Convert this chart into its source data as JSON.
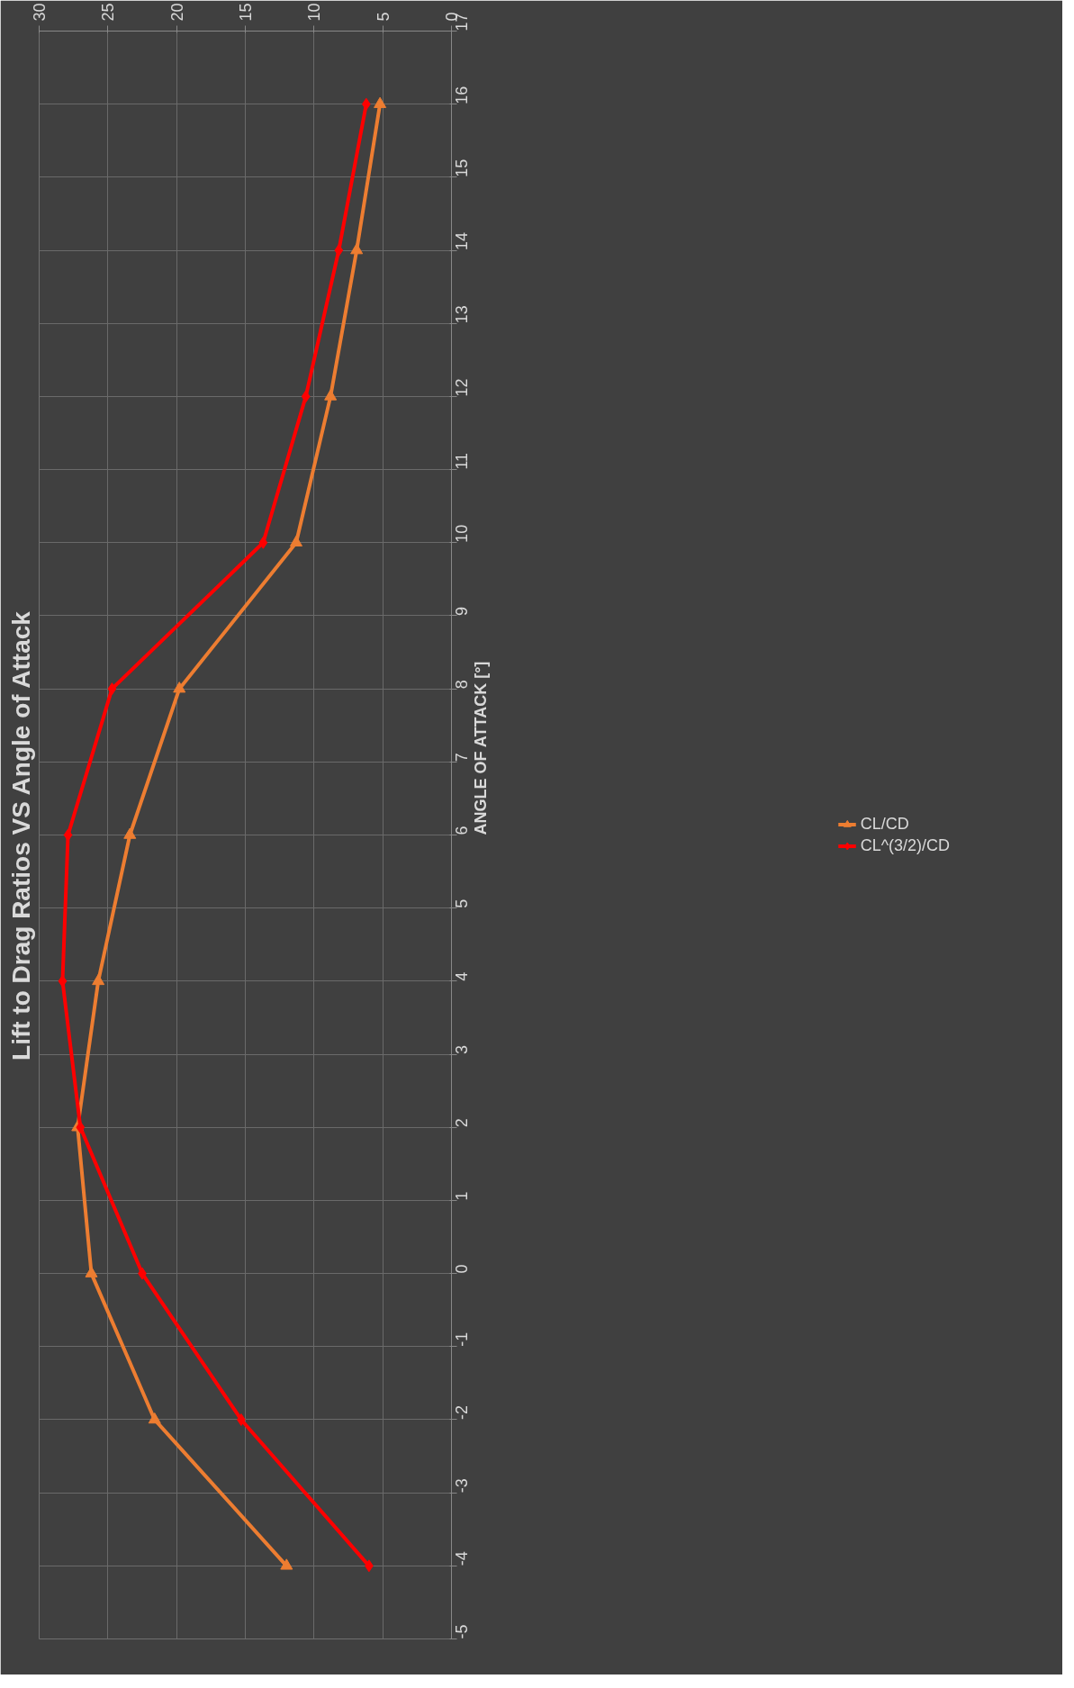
{
  "chart_data": {
    "type": "line",
    "title": "Lift to Drag Ratios VS Angle of Attack",
    "ylabel": "ANGLE OF ATTACK [°]",
    "series": [
      {
        "name": "CL/CD",
        "color": "#ed7d31",
        "marker": "triangle",
        "x": [
          12.0,
          21.6,
          26.2,
          27.2,
          25.7,
          23.4,
          19.8,
          11.3,
          8.8,
          6.9,
          5.2
        ],
        "values": [
          -4,
          -2,
          0,
          2,
          4,
          6,
          8,
          10,
          12,
          14,
          16
        ]
      },
      {
        "name": "CL^(3/2)/CD",
        "color": "#ff0000",
        "marker": "diamond",
        "x": [
          6.0,
          15.3,
          22.5,
          27.0,
          28.3,
          27.9,
          24.7,
          13.7,
          10.6,
          8.2,
          6.2
        ],
        "values": [
          -4,
          -2,
          0,
          2,
          4,
          6,
          8,
          10,
          12,
          14,
          16
        ]
      }
    ],
    "xlim": [
      30,
      0
    ],
    "xticks": [
      0,
      5,
      10,
      15,
      20,
      25,
      30
    ],
    "ylim": [
      -5,
      17
    ],
    "yticks": [
      -5,
      -4,
      -3,
      -2,
      -1,
      0,
      1,
      2,
      3,
      4,
      5,
      6,
      7,
      8,
      9,
      10,
      11,
      12,
      13,
      14,
      15,
      16,
      17
    ],
    "grid": true,
    "legend": "right",
    "line_style": "solid"
  }
}
